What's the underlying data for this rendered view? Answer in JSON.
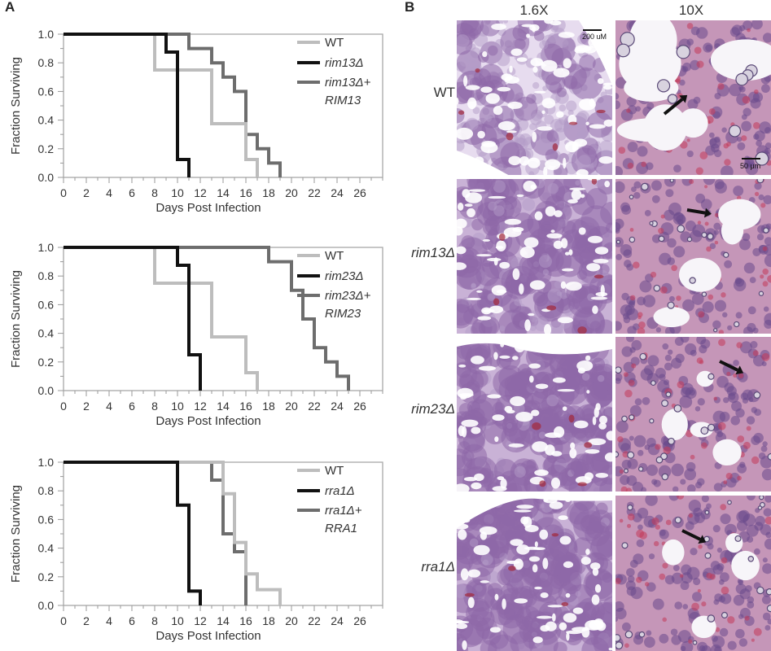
{
  "panel_a_label": "A",
  "panel_b_label": "B",
  "chart_data": [
    {
      "type": "line",
      "step": true,
      "xlabel": "Days Post Infection",
      "ylabel": "Fraction Surviving",
      "xlim": [
        0,
        28
      ],
      "ylim": [
        0,
        1.0
      ],
      "xticks": [
        0,
        2,
        4,
        6,
        8,
        10,
        12,
        14,
        16,
        18,
        20,
        22,
        24,
        26
      ],
      "yticks": [
        "0.0",
        "0.2",
        "0.4",
        "0.6",
        "0.8",
        "1.0"
      ],
      "grid": false,
      "legend_position": "top-right",
      "legend": [
        {
          "text": "WT",
          "italic": false
        },
        {
          "text": "rim13Δ",
          "italic": true
        },
        {
          "text": "rim13Δ+",
          "italic": true
        },
        {
          "text": "RIM13",
          "italic": true
        }
      ],
      "series": [
        {
          "name": "WT",
          "color": "#bdbdbd",
          "x": [
            0,
            8,
            8,
            13,
            13,
            16,
            16,
            17,
            17
          ],
          "y": [
            1.0,
            1.0,
            0.75,
            0.75,
            0.375,
            0.375,
            0.125,
            0.125,
            0.0
          ]
        },
        {
          "name": "rim13Δ",
          "color": "#111111",
          "x": [
            0,
            9,
            9,
            10,
            10,
            11,
            11
          ],
          "y": [
            1.0,
            1.0,
            0.875,
            0.875,
            0.125,
            0.125,
            0.0
          ]
        },
        {
          "name": "rim13Δ+RIM13",
          "color": "#6d6d6d",
          "x": [
            0,
            11,
            11,
            13,
            13,
            14,
            14,
            15,
            15,
            16,
            16,
            17,
            17,
            18,
            18,
            19,
            19
          ],
          "y": [
            1.0,
            1.0,
            0.9,
            0.9,
            0.8,
            0.8,
            0.7,
            0.7,
            0.6,
            0.6,
            0.3,
            0.3,
            0.2,
            0.2,
            0.1,
            0.1,
            0.0
          ]
        }
      ]
    },
    {
      "type": "line",
      "step": true,
      "xlabel": "Days Post Infection",
      "ylabel": "Fraction Surviving",
      "xlim": [
        0,
        28
      ],
      "ylim": [
        0,
        1.0
      ],
      "xticks": [
        0,
        2,
        4,
        6,
        8,
        10,
        12,
        14,
        16,
        18,
        20,
        22,
        24,
        26
      ],
      "yticks": [
        "0.0",
        "0.2",
        "0.4",
        "0.6",
        "0.8",
        "1.0"
      ],
      "grid": false,
      "legend_position": "top-right",
      "legend": [
        {
          "text": "WT",
          "italic": false
        },
        {
          "text": "rim23Δ",
          "italic": true
        },
        {
          "text": "rim23Δ+",
          "italic": true
        },
        {
          "text": "RIM23",
          "italic": true
        }
      ],
      "series": [
        {
          "name": "WT",
          "color": "#bdbdbd",
          "x": [
            0,
            8,
            8,
            13,
            13,
            16,
            16,
            17,
            17
          ],
          "y": [
            1.0,
            1.0,
            0.75,
            0.75,
            0.375,
            0.375,
            0.125,
            0.125,
            0.0
          ]
        },
        {
          "name": "rim23Δ",
          "color": "#111111",
          "x": [
            0,
            10,
            10,
            11,
            11,
            12,
            12
          ],
          "y": [
            1.0,
            1.0,
            0.875,
            0.875,
            0.25,
            0.25,
            0.0
          ]
        },
        {
          "name": "rim23Δ+RIM23",
          "color": "#6d6d6d",
          "x": [
            0,
            18,
            18,
            20,
            20,
            21,
            21,
            22,
            22,
            23,
            23,
            24,
            24,
            25,
            25
          ],
          "y": [
            1.0,
            1.0,
            0.9,
            0.9,
            0.7,
            0.7,
            0.5,
            0.5,
            0.3,
            0.3,
            0.2,
            0.2,
            0.1,
            0.1,
            0.0
          ]
        }
      ]
    },
    {
      "type": "line",
      "step": true,
      "xlabel": "Days Post Infection",
      "ylabel": "Fraction Surviving",
      "xlim": [
        0,
        28
      ],
      "ylim": [
        0,
        1.0
      ],
      "xticks": [
        0,
        2,
        4,
        6,
        8,
        10,
        12,
        14,
        16,
        18,
        20,
        22,
        24,
        26
      ],
      "yticks": [
        "0.0",
        "0.2",
        "0.4",
        "0.6",
        "0.8",
        "1.0"
      ],
      "grid": false,
      "legend_position": "top-right",
      "legend": [
        {
          "text": "WT",
          "italic": false
        },
        {
          "text": "rra1Δ",
          "italic": true
        },
        {
          "text": "rra1Δ+",
          "italic": true
        },
        {
          "text": "RRA1",
          "italic": true
        }
      ],
      "series": [
        {
          "name": "WT",
          "color": "#bdbdbd",
          "x": [
            0,
            14,
            14,
            15,
            15,
            16,
            16,
            17,
            17,
            19,
            19
          ],
          "y": [
            1.0,
            1.0,
            0.78,
            0.78,
            0.44,
            0.44,
            0.22,
            0.22,
            0.11,
            0.11,
            0.0
          ]
        },
        {
          "name": "rra1Δ",
          "color": "#111111",
          "x": [
            0,
            10,
            10,
            11,
            11,
            12,
            12
          ],
          "y": [
            1.0,
            1.0,
            0.7,
            0.7,
            0.1,
            0.1,
            0.0
          ]
        },
        {
          "name": "rra1Δ+RRA1",
          "color": "#6d6d6d",
          "x": [
            0,
            13,
            13,
            14,
            14,
            15,
            15,
            16,
            16
          ],
          "y": [
            1.0,
            1.0,
            0.875,
            0.875,
            0.5,
            0.5,
            0.375,
            0.375,
            0.0
          ]
        }
      ]
    }
  ],
  "panel_b": {
    "col_headers": [
      "1.6X",
      "10X"
    ],
    "row_labels": [
      {
        "text": "WT",
        "italic": false
      },
      {
        "text": "rim13Δ",
        "italic": true
      },
      {
        "text": "rim23Δ",
        "italic": true
      },
      {
        "text": "rra1Δ",
        "italic": true
      }
    ],
    "scalebar_low": "200 uM",
    "scalebar_high": "50 μm"
  }
}
